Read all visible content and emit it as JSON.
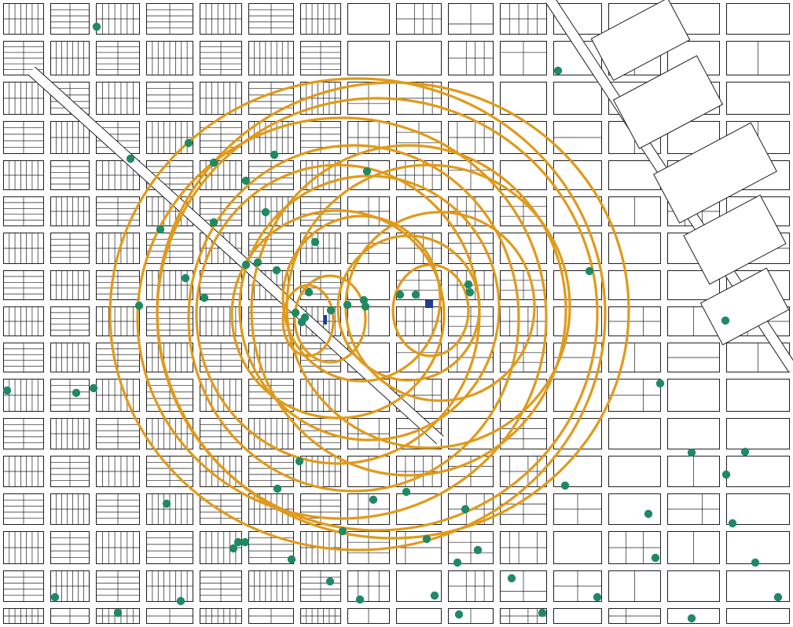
{
  "map": {
    "colors": {
      "background": "#ffffff",
      "street_lines": "#1f1f1f",
      "buffer_rings": "#e09a1b",
      "points": "#1f8a62",
      "focal_sites": "#1d3f8c"
    },
    "layers": [
      {
        "name": "streets-and-parcels",
        "icon": "none"
      },
      {
        "name": "buffer-rings",
        "icon": "circle-outline"
      },
      {
        "name": "points",
        "icon": "dot"
      },
      {
        "name": "focal-sites",
        "icon": "square"
      }
    ],
    "buffer_ring_count": 16,
    "point_count": 70,
    "focal_site_count": 2
  }
}
